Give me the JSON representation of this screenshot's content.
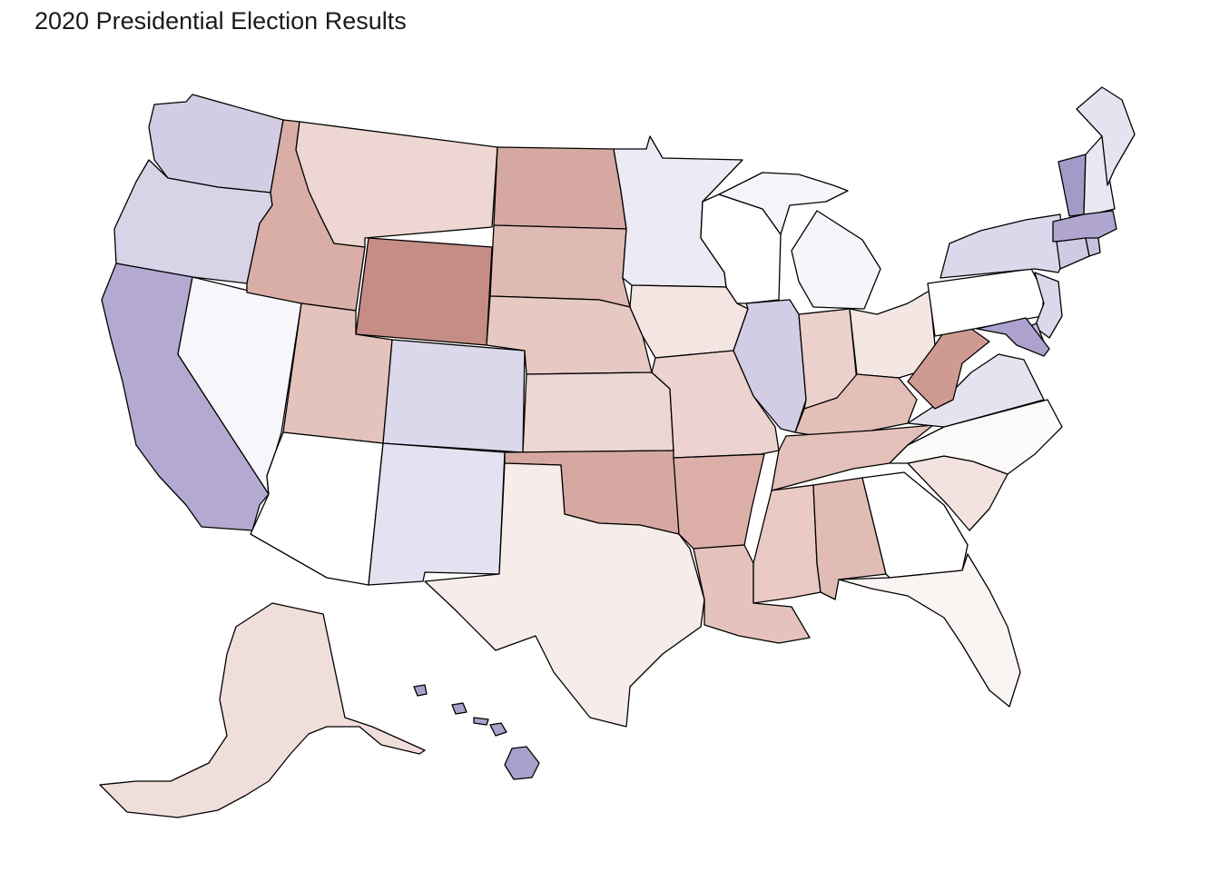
{
  "title": "2020 Presidential Election Results",
  "colors": {
    "dem_strong": "#9a8ec4",
    "dem_mid": "#b4a9d1",
    "dem_light": "#d2cde4",
    "dem_faint": "#e6e3f1",
    "neutral": "#ffffff",
    "rep_faint": "#f5ebea",
    "rep_light": "#ecd4d0",
    "rep_mid": "#e0bab3",
    "rep_strong": "#d3a79f",
    "rep_deep": "#c58d86"
  },
  "states": [
    {
      "id": "WA",
      "fill": "#d2cde4"
    },
    {
      "id": "OR",
      "fill": "#d8d4e8"
    },
    {
      "id": "CA",
      "fill": "#b4a9d1"
    },
    {
      "id": "NV",
      "fill": "#f7f7fb"
    },
    {
      "id": "ID",
      "fill": "#d9aea6"
    },
    {
      "id": "MT",
      "fill": "#eed6d2"
    },
    {
      "id": "WY",
      "fill": "#c58d86"
    },
    {
      "id": "UT",
      "fill": "#e4c3bd"
    },
    {
      "id": "AZ",
      "fill": "#ffffff"
    },
    {
      "id": "CO",
      "fill": "#dcd8eb"
    },
    {
      "id": "NM",
      "fill": "#e4e1f0"
    },
    {
      "id": "ND",
      "fill": "#d5a9a1"
    },
    {
      "id": "SD",
      "fill": "#dfbab3"
    },
    {
      "id": "NE",
      "fill": "#e7c9c3"
    },
    {
      "id": "KS",
      "fill": "#ecd6d2"
    },
    {
      "id": "OK",
      "fill": "#d5a9a1"
    },
    {
      "id": "TX",
      "fill": "#f6ecea"
    },
    {
      "id": "MN",
      "fill": "#eceaf5"
    },
    {
      "id": "IA",
      "fill": "#f4e5e2"
    },
    {
      "id": "MO",
      "fill": "#ecd3cf"
    },
    {
      "id": "AR",
      "fill": "#dcb0a9"
    },
    {
      "id": "LA",
      "fill": "#e5c2bc"
    },
    {
      "id": "WI",
      "fill": "#ffffff"
    },
    {
      "id": "IL",
      "fill": "#d2cde4"
    },
    {
      "id": "MI",
      "fill": "#f6f5fb"
    },
    {
      "id": "IN",
      "fill": "#ebd0cb"
    },
    {
      "id": "OH",
      "fill": "#f4e6e3"
    },
    {
      "id": "KY",
      "fill": "#e3bfb8"
    },
    {
      "id": "TN",
      "fill": "#e3c0b9"
    },
    {
      "id": "MS",
      "fill": "#e9cac5"
    },
    {
      "id": "AL",
      "fill": "#e1bcb5"
    },
    {
      "id": "GA",
      "fill": "#ffffff"
    },
    {
      "id": "FL",
      "fill": "#faf4f3"
    },
    {
      "id": "SC",
      "fill": "#f3e2df"
    },
    {
      "id": "NC",
      "fill": "#fcfaf9"
    },
    {
      "id": "VA",
      "fill": "#e6e3f1"
    },
    {
      "id": "WV",
      "fill": "#cf9a92"
    },
    {
      "id": "PA",
      "fill": "#ffffff"
    },
    {
      "id": "NY",
      "fill": "#dcd8eb"
    },
    {
      "id": "NJ",
      "fill": "#dcd8eb"
    },
    {
      "id": "DE",
      "fill": "#c5bddd"
    },
    {
      "id": "MD",
      "fill": "#ada2cd"
    },
    {
      "id": "VT",
      "fill": "#a49ac8"
    },
    {
      "id": "NH",
      "fill": "#e9e7f3"
    },
    {
      "id": "ME",
      "fill": "#e6e3f1"
    },
    {
      "id": "MA",
      "fill": "#b0a6cf"
    },
    {
      "id": "CT",
      "fill": "#cfcae3"
    },
    {
      "id": "RI",
      "fill": "#c9c2df"
    },
    {
      "id": "AK",
      "fill": "#f0dedb"
    },
    {
      "id": "HI",
      "fill": "#a9a0cc"
    }
  ]
}
